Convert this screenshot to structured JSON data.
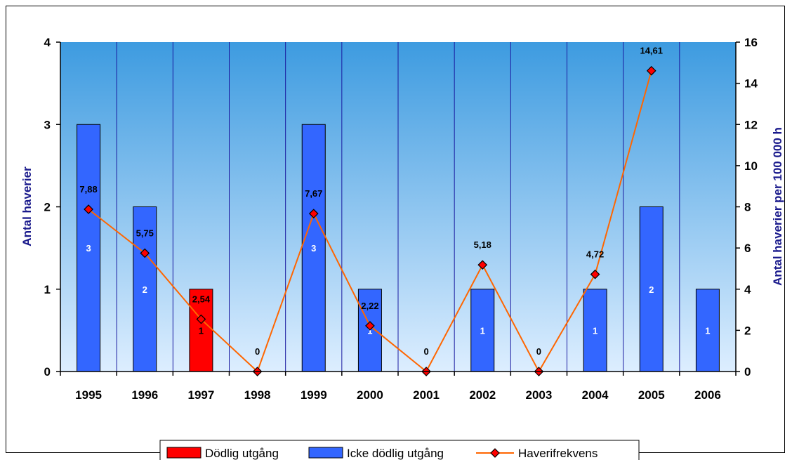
{
  "chart_data": {
    "type": "bar",
    "categories": [
      "1995",
      "1996",
      "1997",
      "1998",
      "1999",
      "2000",
      "2001",
      "2002",
      "2003",
      "2004",
      "2005",
      "2006"
    ],
    "series": [
      {
        "name": "Dödlig utgång",
        "kind": "bar",
        "axis": "left",
        "color": "#ff0000",
        "values": [
          0,
          0,
          1,
          0,
          0,
          0,
          0,
          0,
          0,
          0,
          0,
          0
        ],
        "inner_labels": [
          "",
          "",
          "1",
          "",
          "",
          "",
          "",
          "",
          "",
          "",
          "",
          ""
        ]
      },
      {
        "name": "Icke dödlig utgång",
        "kind": "bar",
        "axis": "left",
        "color": "#3366ff",
        "values": [
          3,
          2,
          0,
          0,
          3,
          1,
          0,
          1,
          0,
          1,
          2,
          1
        ],
        "inner_labels": [
          "3",
          "2",
          "",
          "",
          "3",
          "1",
          "",
          "1",
          "",
          "1",
          "2",
          "1"
        ]
      },
      {
        "name": "Haverifrekvens",
        "kind": "line",
        "axis": "right",
        "color": "#ff6600",
        "marker_color": "#ff0000",
        "values": [
          7.88,
          5.75,
          2.54,
          0,
          7.67,
          2.22,
          0,
          5.18,
          0,
          4.72,
          14.61,
          null
        ],
        "labels": [
          "7,88",
          "5,75",
          "2,54",
          "0",
          "7,67",
          "2,22",
          "0",
          "5,18",
          "0",
          "4,72",
          "14,61",
          ""
        ]
      }
    ],
    "ylabel": "Antal haverier",
    "y2label": "Antal haverier per 100 000 h",
    "ylim": [
      0,
      4
    ],
    "yticks": [
      "0",
      "1",
      "2",
      "3",
      "4"
    ],
    "y2lim": [
      0,
      16
    ],
    "y2ticks": [
      "0",
      "2",
      "4",
      "6",
      "8",
      "10",
      "12",
      "14",
      "16"
    ],
    "grid": "vertical",
    "legend_position": "bottom",
    "plot_background": [
      "#3d9be0",
      "#ddeeff"
    ]
  }
}
